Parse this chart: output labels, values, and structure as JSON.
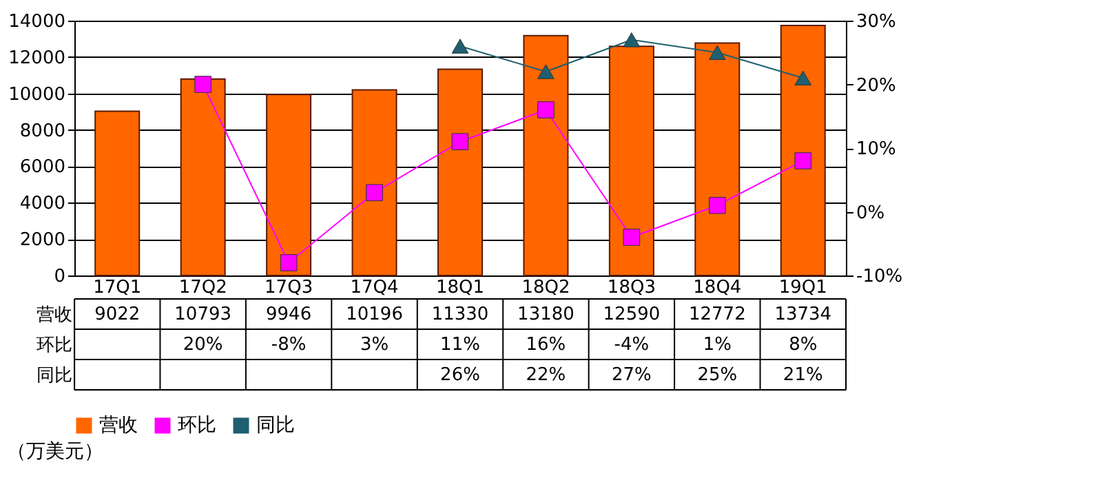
{
  "chart_data": {
    "type": "bar",
    "categories": [
      "17Q1",
      "17Q2",
      "17Q3",
      "17Q4",
      "18Q1",
      "18Q2",
      "18Q3",
      "18Q4",
      "19Q1"
    ],
    "series": [
      {
        "name": "营收",
        "color": "#ff6600",
        "values": [
          9022,
          10793,
          9946,
          10196,
          11330,
          13180,
          12590,
          12772,
          13734
        ],
        "value_labels": [
          "9022",
          "10793",
          "9946",
          "10196",
          "11330",
          "13180",
          "12590",
          "12772",
          "13734"
        ]
      },
      {
        "name": "环比",
        "type": "line",
        "axis": "y2",
        "marker": "square",
        "color": "#ff00ff",
        "values": [
          null,
          20,
          -8,
          3,
          11,
          16,
          -4,
          1,
          8
        ],
        "value_labels": [
          null,
          "20%",
          "-8%",
          "3%",
          "11%",
          "16%",
          "-4%",
          "1%",
          "8%"
        ]
      },
      {
        "name": "同比",
        "type": "line",
        "axis": "y2",
        "marker": "triangle",
        "color": "#1f5f6f",
        "values": [
          null,
          null,
          null,
          null,
          26,
          22,
          27,
          25,
          21
        ],
        "value_labels": [
          null,
          null,
          null,
          null,
          "26%",
          "22%",
          "27%",
          "25%",
          "21%"
        ]
      }
    ],
    "ylim": [
      0,
      14000
    ],
    "yticks": [
      0,
      2000,
      4000,
      6000,
      8000,
      10000,
      12000,
      14000
    ],
    "y2lim": [
      -10,
      30
    ],
    "y2ticks": [
      {
        "value": -10,
        "label": "-10%"
      },
      {
        "value": 0,
        "label": "0%"
      },
      {
        "value": 10,
        "label": "10%"
      },
      {
        "value": 20,
        "label": "20%"
      },
      {
        "value": 30,
        "label": "30%"
      }
    ],
    "grid": "y",
    "legend": "bottom",
    "annotations": [
      "（万美元）"
    ]
  }
}
